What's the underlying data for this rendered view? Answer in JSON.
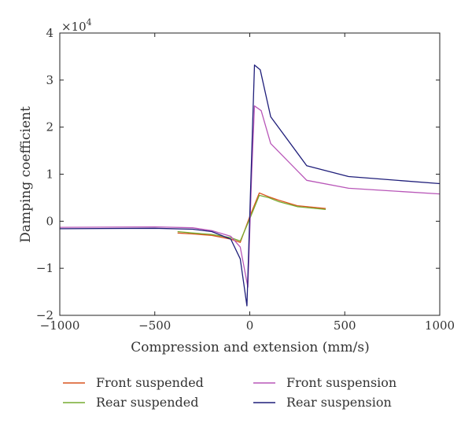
{
  "chart_data": {
    "type": "line",
    "title": "",
    "xlabel": "Compression and extension (mm/s)",
    "ylabel": "Damping coefficient",
    "y_multiplier_label": "×10",
    "y_multiplier_exponent": "4",
    "xlim": [
      -1000,
      1000
    ],
    "ylim": [
      -2,
      4
    ],
    "y_scale_factor": 10000,
    "xticks": [
      -1000,
      -500,
      0,
      500,
      1000
    ],
    "yticks": [
      -2,
      -1,
      0,
      1,
      2,
      3,
      4
    ],
    "xtick_labels": [
      "−1000",
      "−500",
      "0",
      "500",
      "1000"
    ],
    "ytick_labels": [
      "−2",
      "−1",
      "0",
      "1",
      "2",
      "3",
      "4"
    ],
    "grid": false,
    "legend_position": "bottom",
    "series": [
      {
        "name": "Front suspended",
        "color": "#d9541e",
        "x": [
          -380,
          -300,
          -200,
          -100,
          -50,
          0,
          50,
          100,
          150,
          250,
          400
        ],
        "y": [
          -0.25,
          -0.27,
          -0.3,
          -0.38,
          -0.45,
          0.1,
          0.6,
          0.52,
          0.45,
          0.33,
          0.27
        ]
      },
      {
        "name": "Rear suspended",
        "color": "#77ac30",
        "x": [
          -380,
          -300,
          -200,
          -100,
          -50,
          0,
          50,
          100,
          150,
          250,
          400
        ],
        "y": [
          -0.22,
          -0.25,
          -0.28,
          -0.35,
          -0.42,
          0.05,
          0.55,
          0.5,
          0.42,
          0.31,
          0.25
        ]
      },
      {
        "name": "Front suspension",
        "color": "#b856b8",
        "x": [
          -1000,
          -500,
          -300,
          -200,
          -100,
          -50,
          -10,
          10,
          25,
          60,
          110,
          300,
          520,
          1000
        ],
        "y": [
          -0.13,
          -0.12,
          -0.14,
          -0.2,
          -0.32,
          -0.55,
          -1.4,
          1.0,
          2.45,
          2.35,
          1.65,
          0.87,
          0.7,
          0.58
        ]
      },
      {
        "name": "Rear suspension",
        "color": "#1f1e7a",
        "x": [
          -1000,
          -500,
          -300,
          -200,
          -100,
          -50,
          -15,
          10,
          25,
          55,
          110,
          300,
          520,
          1000
        ],
        "y": [
          -0.16,
          -0.15,
          -0.17,
          -0.22,
          -0.38,
          -0.8,
          -1.8,
          1.4,
          3.32,
          3.22,
          2.22,
          1.18,
          0.95,
          0.8
        ]
      }
    ]
  }
}
